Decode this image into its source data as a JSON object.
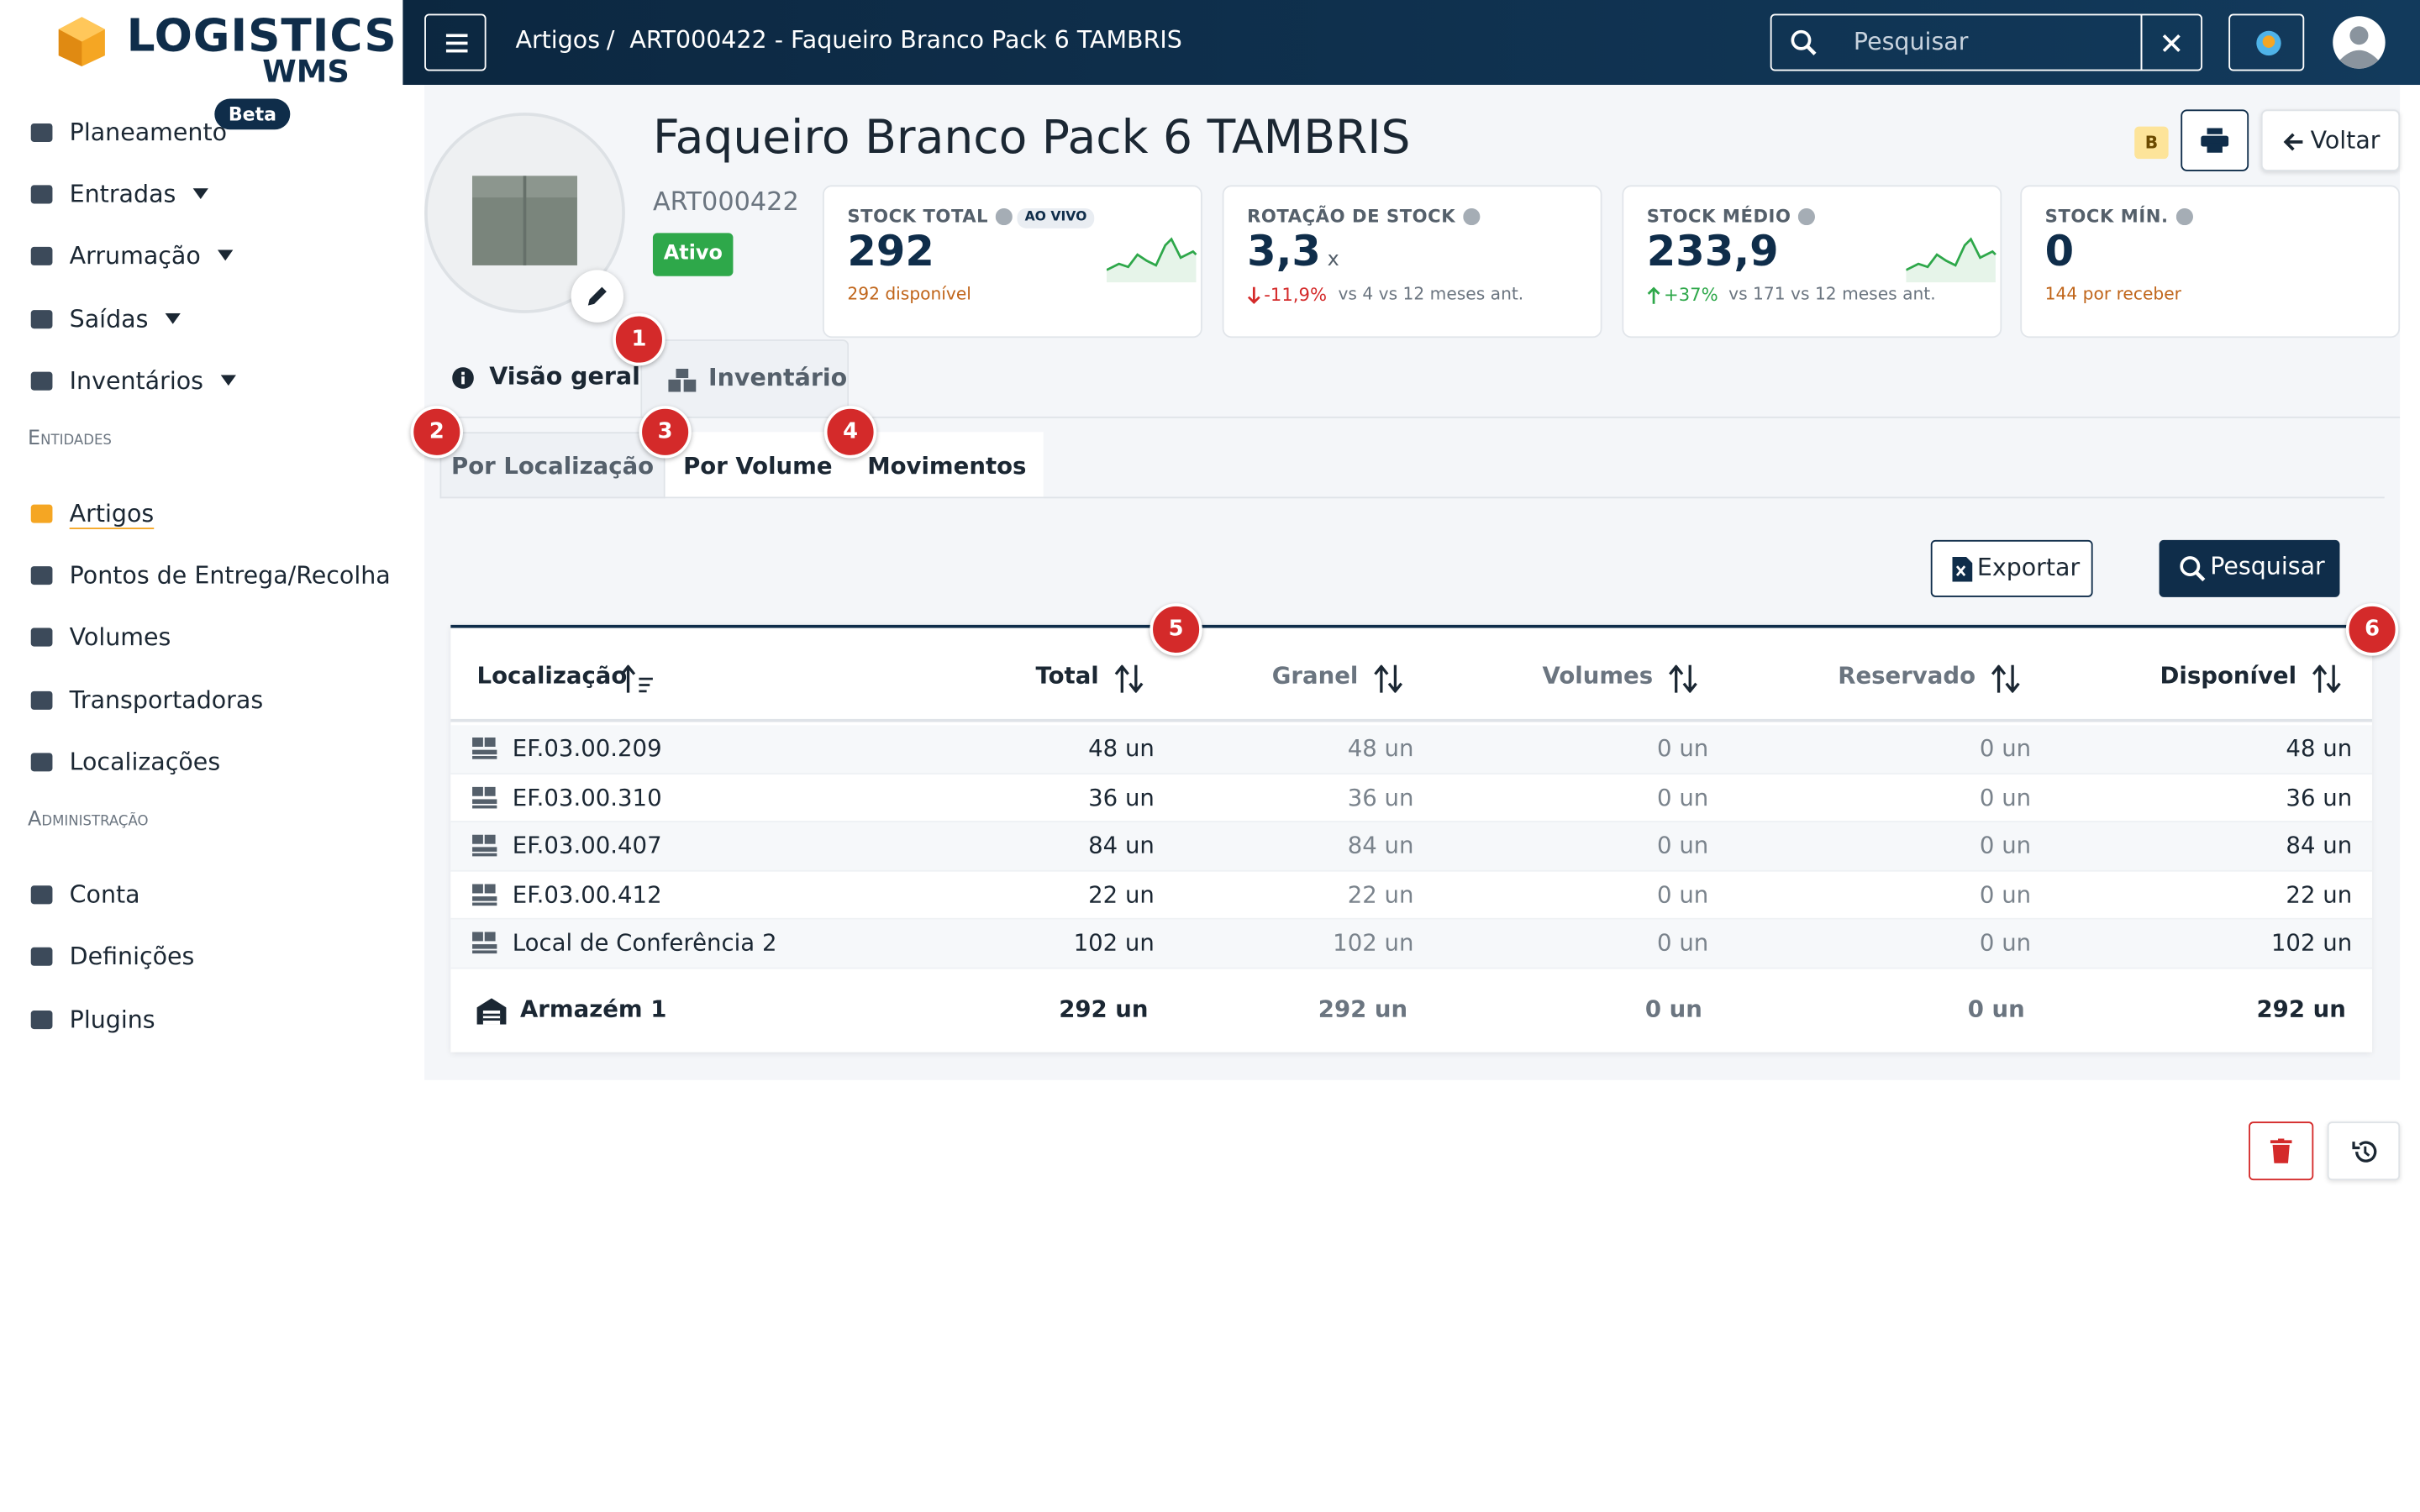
{
  "brand": {
    "name": "LOGISTICS",
    "sub": "WMS"
  },
  "sidebar": {
    "main": [
      {
        "label": "Planeamento",
        "badge": "Beta"
      },
      {
        "label": "Entradas",
        "dropdown": true
      },
      {
        "label": "Arrumação",
        "dropdown": true
      },
      {
        "label": "Saídas",
        "dropdown": true
      },
      {
        "label": "Inventários",
        "dropdown": true
      }
    ],
    "entities_title": "Entidades",
    "entities": [
      {
        "label": "Artigos",
        "active": true
      },
      {
        "label": "Pontos de Entrega/Recolha"
      },
      {
        "label": "Volumes"
      },
      {
        "label": "Transportadoras"
      },
      {
        "label": "Localizações"
      }
    ],
    "admin_title": "Administração",
    "admin": [
      {
        "label": "Conta"
      },
      {
        "label": "Definições"
      },
      {
        "label": "Plugins"
      }
    ]
  },
  "topbar": {
    "breadcrumb": [
      "Artigos",
      "ART000422 - Faqueiro Branco Pack 6 TAMBRIS"
    ],
    "search_placeholder": "Pesquisar"
  },
  "header": {
    "title": "Faqueiro Branco Pack 6 TAMBRIS",
    "code": "ART000422",
    "status": "Ativo",
    "class_badge": "B",
    "back": "Voltar"
  },
  "kpis": [
    {
      "label": "STOCK TOTAL",
      "tag": "AO VIVO",
      "value": "292",
      "note": "292 disponível",
      "trend": true
    },
    {
      "label": "ROTAÇÃO DE STOCK",
      "value": "3,3",
      "unit": "x",
      "change": "-11,9%",
      "direction": "down",
      "note": "vs 4 vs 12 meses ant."
    },
    {
      "label": "STOCK MÉDIO",
      "value": "233,9",
      "change": "+37%",
      "direction": "up",
      "note": "vs 171 vs 12 meses ant.",
      "trend": true
    },
    {
      "label": "STOCK MÍN.",
      "value": "0",
      "note": "144 por receber"
    }
  ],
  "tabs": [
    "Visão geral",
    "Inventário"
  ],
  "subtabs": [
    "Por Localização",
    "Por Volume",
    "Movimentos"
  ],
  "actions": {
    "export": "Exportar",
    "search": "Pesquisar"
  },
  "table": {
    "columns": [
      "Localização",
      "Total",
      "Granel",
      "Volumes",
      "Reservado",
      "Disponível"
    ],
    "rows": [
      [
        "EF.03.00.209",
        "48 un",
        "48 un",
        "0 un",
        "0 un",
        "48 un"
      ],
      [
        "EF.03.00.310",
        "36 un",
        "36 un",
        "0 un",
        "0 un",
        "36 un"
      ],
      [
        "EF.03.00.407",
        "84 un",
        "84 un",
        "0 un",
        "0 un",
        "84 un"
      ],
      [
        "EF.03.00.412",
        "22 un",
        "22 un",
        "0 un",
        "0 un",
        "22 un"
      ],
      [
        "Local de Conferência 2",
        "102 un",
        "102 un",
        "0 un",
        "0 un",
        "102 un"
      ]
    ],
    "footer": [
      "Armazém 1",
      "292 un",
      "292 un",
      "0 un",
      "0 un",
      "292 un"
    ]
  },
  "markers": [
    "1",
    "2",
    "3",
    "4",
    "5",
    "6"
  ]
}
